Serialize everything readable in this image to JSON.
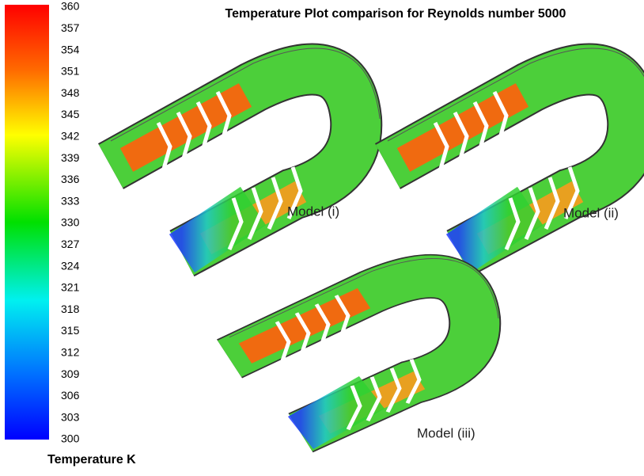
{
  "title": "Temperature Plot comparison for Reynolds number 5000",
  "colorbar": {
    "ticks": [
      360,
      357,
      354,
      351,
      348,
      345,
      342,
      339,
      336,
      333,
      330,
      327,
      324,
      321,
      318,
      315,
      312,
      309,
      306,
      303,
      300
    ],
    "label": "Temperature K"
  },
  "models": [
    "Model (i)",
    "Model (ii)",
    "Model (iii)"
  ]
}
